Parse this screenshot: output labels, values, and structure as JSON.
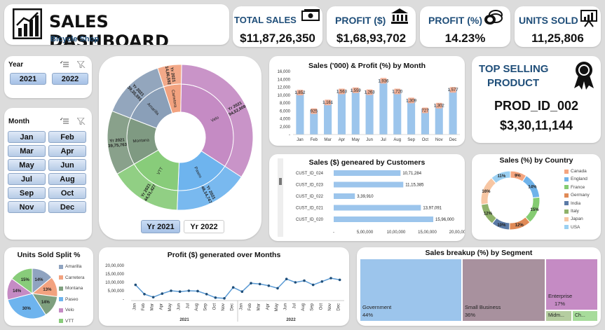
{
  "header": {
    "title": "SALES DASHBOARD",
    "subtitle": "Bicycle Shop"
  },
  "kpis": {
    "total_sales": {
      "label": "TOTAL SALES",
      "value": "$11,87,26,350",
      "icon": "money-icon"
    },
    "profit": {
      "label": "PROFIT ($)",
      "value": "$1,68,93,702",
      "icon": "bank-icon"
    },
    "profit_pct": {
      "label": "PROFIT (%)",
      "value": "14.23%",
      "icon": "coins-icon"
    },
    "units_sold": {
      "label": "UNITS SOLD",
      "value": "11,25,806",
      "icon": "presentation-icon"
    }
  },
  "year_slicer": {
    "title": "Year",
    "options": [
      "2021",
      "2022"
    ]
  },
  "month_slicer": {
    "title": "Month",
    "options": [
      "Jan",
      "Feb",
      "Mar",
      "Apr",
      "May",
      "Jun",
      "Jul",
      "Aug",
      "Sep",
      "Oct",
      "Nov",
      "Dec"
    ]
  },
  "sunburst": {
    "buttons": [
      "Yr 2021",
      "Yr 2022"
    ],
    "inner_labels": [
      "Velo",
      "Paseo",
      "VTT",
      "Montana",
      "Amarilla",
      "Carretera"
    ],
    "outer_labels": [
      "Yr 2021\n94,52,909",
      "Yr 2021\n46,14,747",
      "Yr 2021\n44,51,427",
      "Yr 2021\n39,75,763",
      "Yr 2021\n39,35,591",
      "Yr 2021\n14,86,592"
    ],
    "colors": [
      "#c58bc4",
      "#6eb4ee",
      "#88cc7a",
      "#7f9a82",
      "#8a9fb8",
      "#f2a27f"
    ]
  },
  "top_selling": {
    "title_line1": "TOP SELLING",
    "title_line2": "PRODUCT",
    "product": "PROD_ID_002",
    "value": "$3,30,11,144",
    "icon": "award-ribbon-icon"
  },
  "charts": {
    "sales_profit_month": {
      "title": "Sales ('000) & Profit (%) by Month",
      "yticks": [
        "16,000",
        "14,000",
        "12,000",
        "10,000",
        "8,000",
        "6,000",
        "4,000",
        "2,000",
        "-"
      ],
      "chart_data": {
        "type": "bar",
        "categories": [
          "Jan",
          "Feb",
          "Mar",
          "Apr",
          "May",
          "Jun",
          "Jul",
          "Aug",
          "Sep",
          "Oct",
          "Nov",
          "Dec"
        ],
        "series": [
          {
            "values": [
              11000,
              6300,
              8500,
              11300,
              11600,
              11100,
              14000,
              11300,
              9000,
              6500,
              7700,
              11700
            ]
          },
          {
            "values": [
              1852,
              925,
              1161,
              1563,
              1559,
              1263,
              1936,
              1720,
              1309,
              727,
              1302,
              1577
            ]
          }
        ],
        "data_labels": [
          "1,852",
          "925",
          "1,161",
          "1,563",
          "1,559",
          "1,263",
          "1,936",
          "1,720",
          "1,309",
          "727",
          "1,302",
          "1,577"
        ],
        "ylim": [
          0,
          16000
        ]
      }
    },
    "customers": {
      "title": "Sales ($) geneared by Customers",
      "xticks": [
        "-",
        "5,00,000",
        "10,00,000",
        "15,00,000",
        "20,00,000"
      ],
      "chart_data": {
        "type": "bar",
        "categories": [
          "CUST_ID_024",
          "CUST_ID_023",
          "CUST_ID_022",
          "CUST_ID_021",
          "CUST_ID_020"
        ],
        "values": [
          1071284,
          1115385,
          339910,
          1397091,
          1596000
        ],
        "data_labels": [
          "10,71,284",
          "11,15,385",
          "3,39,910",
          "13,97,091",
          "15,96,000"
        ],
        "xlim": [
          0,
          2000000
        ]
      }
    },
    "country": {
      "title": "Sales (%) by Country",
      "chart_data": {
        "type": "pie",
        "categories": [
          "Canada",
          "England",
          "France",
          "Germany",
          "India",
          "Italy",
          "Japan",
          "USA"
        ],
        "values": [
          9,
          14,
          15,
          12,
          10,
          12,
          16,
          11
        ],
        "data_labels": [
          "9%",
          "14%",
          "15%",
          "12%",
          "10%",
          "12%",
          "16%",
          "11%"
        ]
      },
      "colors": [
        "#f4a57f",
        "#6fb3ea",
        "#85cc72",
        "#e08a57",
        "#5a7aa6",
        "#8fb26a",
        "#f7c6a3",
        "#9bd0f2"
      ]
    },
    "units_split": {
      "title": "Units Sold Split %",
      "chart_data": {
        "type": "pie",
        "categories": [
          "Amarilla",
          "Carretera",
          "Montana",
          "Paseo",
          "Velo",
          "VTT"
        ],
        "values": [
          14,
          13,
          14,
          30,
          14,
          15
        ],
        "data_labels": [
          "14%",
          "13%",
          "14%",
          "30%",
          "14%",
          "15%"
        ]
      },
      "colors": [
        "#8fa3c0",
        "#f2a27f",
        "#7fa07f",
        "#6eb4ee",
        "#c58bc4",
        "#88cc7a"
      ]
    },
    "profit_months": {
      "title": "Profit ($) generated over Months",
      "yticks": [
        "20,00,000",
        "15,00,000",
        "10,00,000",
        "5,00,000",
        "-"
      ],
      "xtick_months": [
        "Jan",
        "Feb",
        "Mar",
        "Apr",
        "May",
        "Jun",
        "Jul",
        "Aug",
        "Sep",
        "Oct",
        "Nov",
        "Dec",
        "Jan",
        "Feb",
        "Mar",
        "Apr",
        "May",
        "Jun",
        "Jul",
        "Aug",
        "Sep",
        "Oct",
        "Nov",
        "Dec"
      ],
      "year_labels": [
        "2021",
        "2022"
      ],
      "chart_data": {
        "type": "line",
        "x": [
          "2021-01",
          "2021-02",
          "2021-03",
          "2021-04",
          "2021-05",
          "2021-06",
          "2021-07",
          "2021-08",
          "2021-09",
          "2021-10",
          "2021-11",
          "2021-12",
          "2022-01",
          "2022-02",
          "2022-03",
          "2022-04",
          "2022-05",
          "2022-06",
          "2022-07",
          "2022-08",
          "2022-09",
          "2022-10",
          "2022-11",
          "2022-12"
        ],
        "values": [
          850000,
          300000,
          120000,
          330000,
          500000,
          450000,
          500000,
          480000,
          300000,
          90000,
          50000,
          700000,
          450000,
          950000,
          900000,
          800000,
          650000,
          1200000,
          1000000,
          1100000,
          850000,
          1050000,
          1250000,
          1150000
        ],
        "ylim": [
          0,
          2000000
        ]
      }
    },
    "segment": {
      "title": "Sales breakup (%) by Segment",
      "chart_data": {
        "type": "table",
        "categories": [
          "Government",
          "Small Business",
          "Enterprise",
          "Midm...",
          "Ch..."
        ],
        "values": [
          44,
          36,
          17,
          2,
          1
        ]
      },
      "labels": [
        "Government",
        "Small Business",
        "Enterprise",
        "Midm...",
        "Ch..."
      ],
      "pct_labels": [
        "44%",
        "36%",
        "17%"
      ]
    }
  }
}
